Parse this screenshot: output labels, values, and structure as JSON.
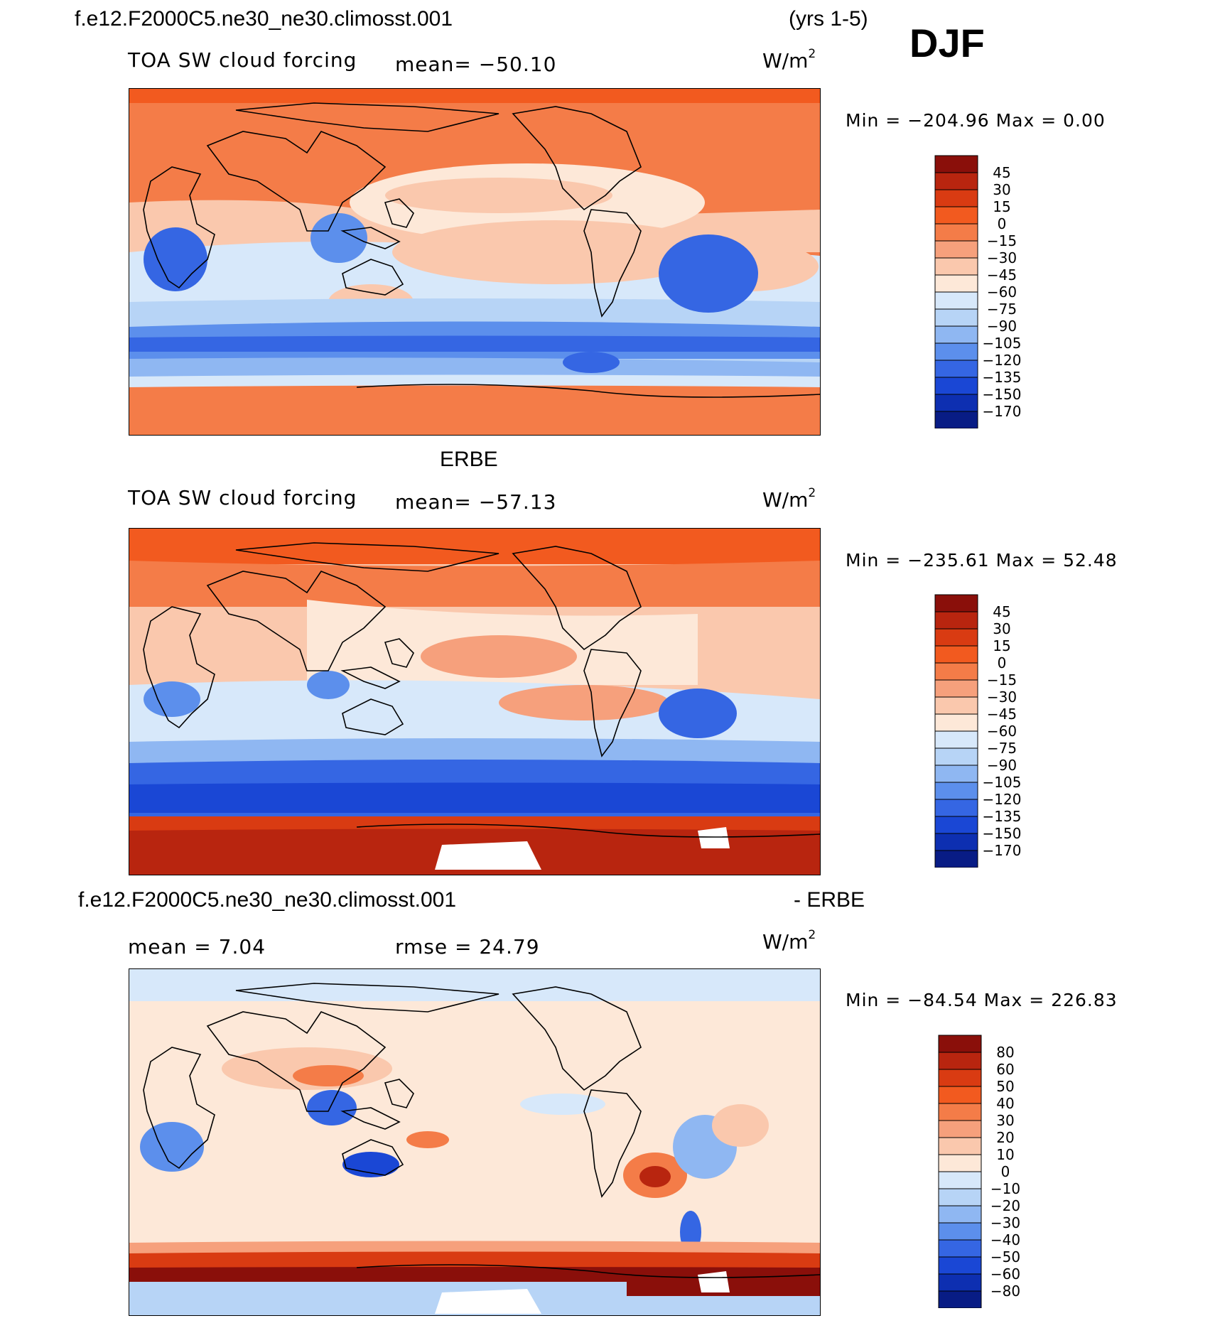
{
  "header": {
    "case_name": "f.e12.F2000C5.ne30_ne30.climosst.001",
    "years": "(yrs 1-5)",
    "season": "DJF"
  },
  "panels": [
    {
      "id": "model",
      "variable": "TOA SW cloud forcing",
      "mean_text": "mean= −50.10",
      "units": "W/m",
      "units_sup": "2",
      "min_max_text": "Min  =  −204.96  Max  =     0.00",
      "colorbar_labels": [
        "45",
        "30",
        "15",
        "0",
        "−15",
        "−30",
        "−45",
        "−60",
        "−75",
        "−90",
        "−105",
        "−120",
        "−135",
        "−150",
        "−170"
      ]
    },
    {
      "id": "obs",
      "title": "ERBE",
      "variable": "TOA SW cloud forcing",
      "mean_text": "mean= −57.13",
      "units": "W/m",
      "units_sup": "2",
      "min_max_text": "Min  =  −235.61  Max  =   52.48",
      "colorbar_labels": [
        "45",
        "30",
        "15",
        "0",
        "−15",
        "−30",
        "−45",
        "−60",
        "−75",
        "−90",
        "−105",
        "−120",
        "−135",
        "−150",
        "−170"
      ]
    },
    {
      "id": "diff",
      "title_left": "f.e12.F2000C5.ne30_ne30.climosst.001",
      "title_right": "- ERBE",
      "mean_text": "mean  =     7.04",
      "rmse_text": "rmse  =    24.79",
      "units": "W/m",
      "units_sup": "2",
      "min_max_text": "Min  =  −84.54  Max  =  226.83",
      "colorbar_labels": [
        "80",
        "60",
        "50",
        "40",
        "30",
        "20",
        "10",
        "0",
        "−10",
        "−20",
        "−30",
        "−40",
        "−50",
        "−60",
        "−80"
      ]
    }
  ],
  "colors": {
    "colorbar_16": [
      "#8a0f0a",
      "#b8250f",
      "#d93b12",
      "#f25a1f",
      "#f47c48",
      "#f6a07c",
      "#fac8ad",
      "#fde8d8",
      "#d7e8fa",
      "#b7d4f6",
      "#8fb7f2",
      "#5c8fec",
      "#3566e3",
      "#1a47d5",
      "#0d2fb1",
      "#081c85"
    ],
    "land_outline": "#000000"
  }
}
